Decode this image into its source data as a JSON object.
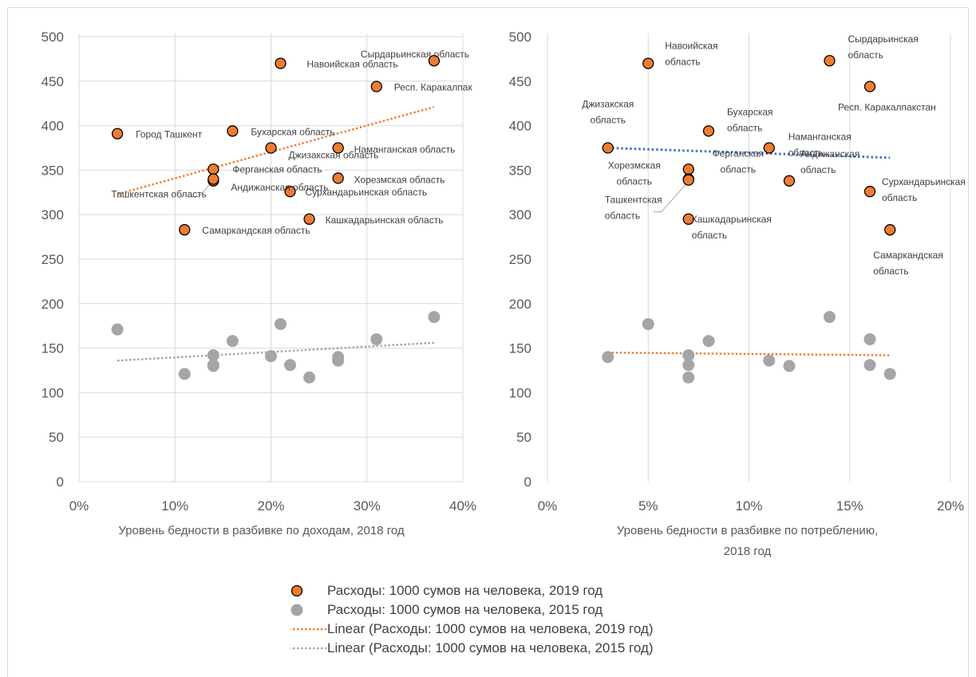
{
  "colors": {
    "series2019": "#ED7D31",
    "series2015": "#A5A5A5",
    "blueTrend": "#4472C4",
    "grid": "#D9D9D9",
    "axisText": "#595959"
  },
  "chart_data": [
    {
      "type": "scatter",
      "xlabel": "Уровень бедности в разбивке по доходам, 2018 год",
      "xlim": [
        0,
        0.4
      ],
      "xticks": [
        "0%",
        "10%",
        "20%",
        "30%",
        "40%"
      ],
      "ylim": [
        0,
        500
      ],
      "yticks": [
        "0",
        "50",
        "100",
        "150",
        "200",
        "250",
        "300",
        "350",
        "400",
        "450",
        "500"
      ],
      "grid": "horizontal",
      "series": [
        {
          "name": "Расходы: 1000 сумов на человека, 2019 год",
          "points": [
            {
              "x": 0.04,
              "y": 391,
              "label": "Город Ташкент"
            },
            {
              "x": 0.16,
              "y": 394,
              "label": "Бухарская область"
            },
            {
              "x": 0.21,
              "y": 470,
              "label": "Навоийская область"
            },
            {
              "x": 0.37,
              "y": 473,
              "label": "Сырдарьинская область"
            },
            {
              "x": 0.31,
              "y": 444,
              "label": "Респ. Каракалпак"
            },
            {
              "x": 0.2,
              "y": 375,
              "label": "Джизакская область"
            },
            {
              "x": 0.27,
              "y": 375,
              "label": "Наманганская область"
            },
            {
              "x": 0.14,
              "y": 351,
              "label": "Ферганская область"
            },
            {
              "x": 0.14,
              "y": 338,
              "label": "Андижанская область"
            },
            {
              "x": 0.14,
              "y": 340,
              "label": "Ташкентская область"
            },
            {
              "x": 0.27,
              "y": 341,
              "label": "Хорезмская область"
            },
            {
              "x": 0.22,
              "y": 326,
              "label": "Сурхандарьинская область"
            },
            {
              "x": 0.24,
              "y": 295,
              "label": "Кашкадарьинская область"
            },
            {
              "x": 0.11,
              "y": 283,
              "label": "Самаркандская область"
            }
          ]
        },
        {
          "name": "Расходы: 1000 сумов на человека, 2015 год",
          "points": [
            {
              "x": 0.04,
              "y": 171
            },
            {
              "x": 0.11,
              "y": 121
            },
            {
              "x": 0.14,
              "y": 142
            },
            {
              "x": 0.14,
              "y": 130
            },
            {
              "x": 0.14,
              "y": 131
            },
            {
              "x": 0.16,
              "y": 158
            },
            {
              "x": 0.2,
              "y": 141
            },
            {
              "x": 0.21,
              "y": 177
            },
            {
              "x": 0.22,
              "y": 131
            },
            {
              "x": 0.24,
              "y": 117
            },
            {
              "x": 0.27,
              "y": 140
            },
            {
              "x": 0.27,
              "y": 136
            },
            {
              "x": 0.31,
              "y": 160
            },
            {
              "x": 0.37,
              "y": 185
            }
          ]
        }
      ],
      "trendlines": [
        {
          "name": "Linear (Расходы: 1000 сумов на человека, 2019 год)",
          "x": [
            0.04,
            0.37
          ],
          "y": [
            323,
            421
          ]
        },
        {
          "name": "Linear (Расходы: 1000 сумов на человека, 2015 год)",
          "x": [
            0.04,
            0.37
          ],
          "y": [
            136,
            156
          ]
        }
      ]
    },
    {
      "type": "scatter",
      "xlabel": "Уровень бедности в разбивке по потреблению, 2018 год",
      "xlim": [
        0,
        0.2
      ],
      "xticks": [
        "0%",
        "5%",
        "10%",
        "15%",
        "20%"
      ],
      "ylim": [
        0,
        500
      ],
      "yticks": [
        "0",
        "50",
        "100",
        "150",
        "200",
        "250",
        "300",
        "350",
        "400",
        "450",
        "500"
      ],
      "grid": "vertical",
      "series": [
        {
          "name": "Расходы: 1000 сумов на человека, 2019 год",
          "points": [
            {
              "x": 0.05,
              "y": 470,
              "label": "Навоийская область"
            },
            {
              "x": 0.14,
              "y": 473,
              "label": "Сырдарьинская область"
            },
            {
              "x": 0.16,
              "y": 444,
              "label": "Респ. Каракалпакстан"
            },
            {
              "x": 0.03,
              "y": 375,
              "label": "Джизакская область"
            },
            {
              "x": 0.08,
              "y": 394,
              "label": "Бухарская область"
            },
            {
              "x": 0.11,
              "y": 375,
              "label": "Наманганская область"
            },
            {
              "x": 0.07,
              "y": 351,
              "label": "Ферганская область"
            },
            {
              "x": 0.07,
              "y": 340,
              "label": "Хорезмская область"
            },
            {
              "x": 0.12,
              "y": 338,
              "label": "Андижанская область"
            },
            {
              "x": 0.16,
              "y": 326,
              "label": "Сурхандарьинская область"
            },
            {
              "x": 0.07,
              "y": 295,
              "label": "Кашкадарьинская область"
            },
            {
              "x": 0.07,
              "y": 339,
              "label": "Ташкентская область"
            },
            {
              "x": 0.17,
              "y": 283,
              "label": "Самаркандская область"
            }
          ]
        },
        {
          "name": "Расходы: 1000 сумов на человека, 2015 год",
          "points": [
            {
              "x": 0.03,
              "y": 140
            },
            {
              "x": 0.05,
              "y": 177
            },
            {
              "x": 0.07,
              "y": 142
            },
            {
              "x": 0.07,
              "y": 131
            },
            {
              "x": 0.07,
              "y": 117
            },
            {
              "x": 0.08,
              "y": 158
            },
            {
              "x": 0.11,
              "y": 136
            },
            {
              "x": 0.12,
              "y": 130
            },
            {
              "x": 0.14,
              "y": 185
            },
            {
              "x": 0.16,
              "y": 160
            },
            {
              "x": 0.16,
              "y": 131
            },
            {
              "x": 0.17,
              "y": 121
            }
          ]
        }
      ],
      "trendlines": [
        {
          "name": "trend-2019",
          "x": [
            0.03,
            0.17
          ],
          "y": [
            375,
            364
          ]
        },
        {
          "name": "trend-2015",
          "x": [
            0.03,
            0.17
          ],
          "y": [
            145,
            142
          ]
        }
      ]
    }
  ],
  "legend": [
    {
      "kind": "marker-orange",
      "label": "Расходы: 1000 сумов на человека, 2019 год"
    },
    {
      "kind": "marker-gray",
      "label": "Расходы: 1000 сумов на человека, 2015 год"
    },
    {
      "kind": "line-orange",
      "label": "Linear (Расходы: 1000 сумов на человека, 2019 год)"
    },
    {
      "kind": "line-gray",
      "label": "Linear (Расходы: 1000 сумов на человека, 2015 год)"
    }
  ]
}
